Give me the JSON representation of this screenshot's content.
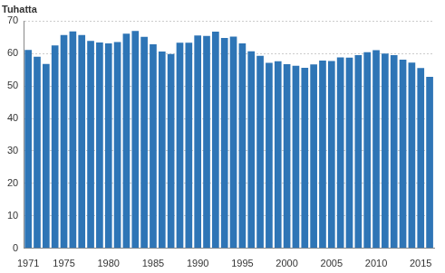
{
  "chart_data": {
    "type": "bar",
    "ylabel": "Tuhatta",
    "categories": [
      "1971",
      null,
      null,
      null,
      "1975",
      null,
      null,
      null,
      null,
      "1980",
      null,
      null,
      null,
      null,
      "1985",
      null,
      null,
      null,
      null,
      "1990",
      null,
      null,
      null,
      null,
      "1995",
      null,
      null,
      null,
      null,
      "2000",
      null,
      null,
      null,
      null,
      "2005",
      null,
      null,
      null,
      null,
      "2010",
      null,
      null,
      null,
      null,
      "2015",
      null
    ],
    "values": [
      61.1,
      59.0,
      56.8,
      62.5,
      65.7,
      66.8,
      65.7,
      63.9,
      63.4,
      63.1,
      63.5,
      66.1,
      66.9,
      65.1,
      62.8,
      60.6,
      59.8,
      63.3,
      63.3,
      65.5,
      65.4,
      66.7,
      64.8,
      65.2,
      63.1,
      60.7,
      59.3,
      57.1,
      57.6,
      56.7,
      56.2,
      55.6,
      56.6,
      57.8,
      57.7,
      58.8,
      58.7,
      59.5,
      60.4,
      61.0,
      60.0,
      59.5,
      58.1,
      57.2,
      55.5,
      52.8
    ],
    "color": "#2e75b6",
    "ylim": [
      0,
      70
    ],
    "yticks": [
      0,
      10,
      20,
      30,
      40,
      50,
      60,
      70
    ],
    "grid": true
  }
}
